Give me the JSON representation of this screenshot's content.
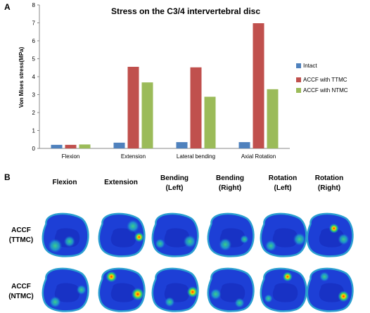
{
  "panel_a_label": "A",
  "panel_b_label": "B",
  "chart_data": {
    "type": "bar",
    "title": "Stress on the C3/4 intervertebral disc",
    "xlabel": "",
    "ylabel": "Von Mises stress(MPa)",
    "ylim": [
      0,
      8
    ],
    "yticks": [
      "0",
      "1",
      "2",
      "3",
      "4",
      "5",
      "6",
      "7",
      "8"
    ],
    "categories": [
      "Flexion",
      "Extension",
      "Lateral bending",
      "Axial Rotation"
    ],
    "series": [
      {
        "name": "Intact",
        "color": "#4f81bd",
        "values": [
          0.2,
          0.32,
          0.35,
          0.35
        ]
      },
      {
        "name": "ACCF with TTMC",
        "color": "#c0504d",
        "values": [
          0.2,
          4.55,
          4.52,
          6.98
        ]
      },
      {
        "name": "ACCF with NTMC",
        "color": "#9bbb59",
        "values": [
          0.22,
          3.68,
          2.88,
          3.3
        ]
      }
    ],
    "grid": false,
    "legend": "right"
  },
  "panel_b": {
    "columns": [
      [
        "Flexion"
      ],
      [
        "Extension"
      ],
      [
        "Bending",
        "(Left)"
      ],
      [
        "Bending",
        "(Right)"
      ],
      [
        "Rotation",
        "(Left)"
      ],
      [
        "Rotation",
        "(Right)"
      ]
    ],
    "rows": [
      [
        "ACCF",
        "(TTMC)"
      ],
      [
        "ACCF",
        "(NTMC)"
      ]
    ]
  }
}
